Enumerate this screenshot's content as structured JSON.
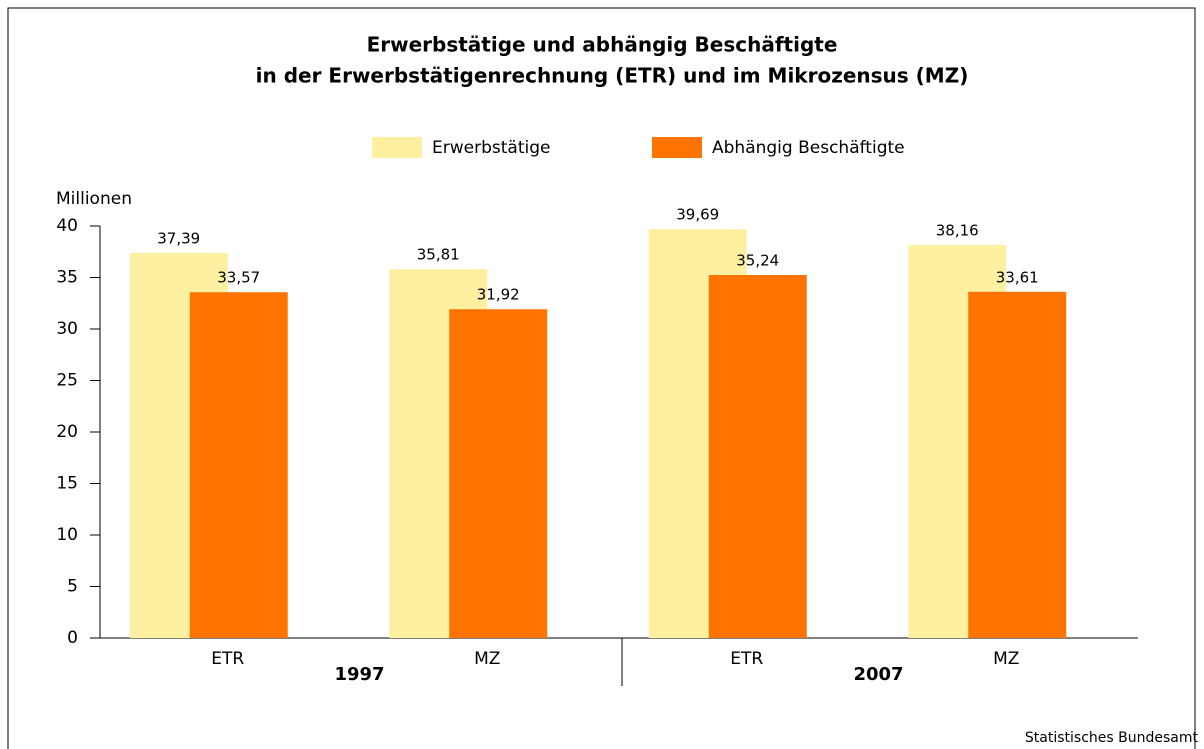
{
  "chart_data": {
    "type": "bar",
    "title": "Erwerbstätige und abhängig Beschäftigte",
    "subtitle": "in der Erwerbstätigenrechnung (ETR) und im Mikrozensus (MZ)",
    "y_axis_label": "Millionen",
    "source": "Statistisches Bundesamt",
    "categories": [
      "ETR",
      "MZ",
      "ETR",
      "MZ"
    ],
    "groups": [
      "1997",
      "2007"
    ],
    "series": [
      {
        "name": "Erwerbstätige",
        "color": "#fdf0a0",
        "values": [
          37.39,
          35.81,
          39.69,
          38.16
        ],
        "value_labels": [
          "37,39",
          "35,81",
          "39,69",
          "38,16"
        ]
      },
      {
        "name": "Abhängig Beschäftigte",
        "color": "#ff7300",
        "values": [
          33.57,
          31.92,
          35.24,
          33.61
        ],
        "value_labels": [
          "33,57",
          "31,92",
          "35,24",
          "33,61"
        ]
      }
    ],
    "ylim": [
      0,
      40
    ],
    "yticks": [
      0,
      5,
      10,
      15,
      20,
      25,
      30,
      35,
      40
    ],
    "grid": false
  }
}
